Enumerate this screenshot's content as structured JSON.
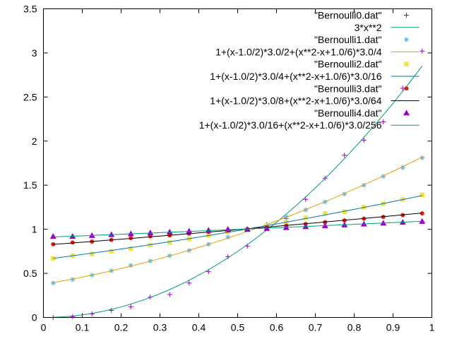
{
  "chart_data": {
    "type": "line",
    "title": "",
    "xlabel": "",
    "ylabel": "",
    "xlim": [
      0,
      1
    ],
    "ylim": [
      0,
      3.5
    ],
    "grid": false,
    "legend_position": "top-right",
    "xticks": [
      "0",
      "0.1",
      "0.2",
      "0.3",
      "0.4",
      "0.5",
      "0.6",
      "0.7",
      "0.8",
      "0.9",
      "1"
    ],
    "yticks": [
      "0",
      "0.5",
      "1",
      "1.5",
      "2",
      "2.5",
      "3",
      "3.5"
    ],
    "series": [
      {
        "name": "\"Bernoulli0.dat\"",
        "kind": "points",
        "marker": "plus",
        "color": "#9400d3",
        "x": [
          0.025,
          0.075,
          0.125,
          0.175,
          0.225,
          0.275,
          0.325,
          0.375,
          0.425,
          0.475,
          0.525,
          0.575,
          0.625,
          0.675,
          0.725,
          0.775,
          0.825,
          0.875,
          0.925,
          0.975
        ],
        "y": [
          0.0,
          0.01,
          0.04,
          0.08,
          0.12,
          0.23,
          0.26,
          0.39,
          0.52,
          0.69,
          0.81,
          1.05,
          1.12,
          1.34,
          1.58,
          1.84,
          2.01,
          2.22,
          2.6,
          3.02
        ]
      },
      {
        "name": "3*x**2",
        "kind": "line",
        "color": "#009e73",
        "formula": "3*x**2"
      },
      {
        "name": "\"Bernoulli1.dat\"",
        "kind": "points",
        "marker": "star",
        "color": "#56b4e9",
        "x": [
          0.025,
          0.075,
          0.125,
          0.175,
          0.225,
          0.275,
          0.325,
          0.375,
          0.425,
          0.475,
          0.525,
          0.575,
          0.625,
          0.675,
          0.725,
          0.775,
          0.825,
          0.875,
          0.925,
          0.975
        ],
        "y": [
          0.39,
          0.43,
          0.48,
          0.53,
          0.59,
          0.64,
          0.7,
          0.76,
          0.83,
          0.91,
          0.99,
          1.04,
          1.14,
          1.22,
          1.31,
          1.4,
          1.5,
          1.6,
          1.7,
          1.81
        ]
      },
      {
        "name": "1+(x-1.0/2)*3.0/2+(x**2-x+1.0/6)*3.0/4",
        "kind": "line",
        "color": "#e69f00",
        "formula": "1+(x-0.5)*1.5+(x*x-x+1/6)*0.75"
      },
      {
        "name": "\"Bernoulli2.dat\"",
        "kind": "points",
        "marker": "square",
        "color": "#f0e442",
        "x": [
          0.025,
          0.075,
          0.125,
          0.175,
          0.225,
          0.275,
          0.325,
          0.375,
          0.425,
          0.475,
          0.525,
          0.575,
          0.625,
          0.675,
          0.725,
          0.775,
          0.825,
          0.875,
          0.925,
          0.975
        ],
        "y": [
          0.67,
          0.7,
          0.72,
          0.75,
          0.78,
          0.82,
          0.85,
          0.89,
          0.93,
          0.97,
          1.0,
          1.03,
          1.08,
          1.13,
          1.18,
          1.2,
          1.25,
          1.29,
          1.34,
          1.39
        ]
      },
      {
        "name": "1+(x-1.0/2)*3.0/4+(x**2-x+1.0/6)*3.0/16",
        "kind": "line",
        "color": "#0072b2",
        "formula": "1+(x-0.5)*0.75+(x*x-x+1/6)*0.1875"
      },
      {
        "name": "\"Bernoulli3.dat\"",
        "kind": "points",
        "marker": "circle",
        "color": "#e51e10",
        "x": [
          0.025,
          0.075,
          0.125,
          0.175,
          0.225,
          0.275,
          0.325,
          0.375,
          0.425,
          0.475,
          0.525,
          0.575,
          0.625,
          0.675,
          0.725,
          0.775,
          0.825,
          0.875,
          0.925,
          0.975
        ],
        "y": [
          0.83,
          0.85,
          0.86,
          0.88,
          0.9,
          0.92,
          0.93,
          0.95,
          0.97,
          0.99,
          1.0,
          1.02,
          1.04,
          1.06,
          1.08,
          1.1,
          1.12,
          1.14,
          1.16,
          1.18
        ]
      },
      {
        "name": "1+(x-1.0/2)*3.0/8+(x**2-x+1.0/6)*3.0/64",
        "kind": "line",
        "color": "#000000",
        "formula": "1+(x-0.5)*0.375+(x*x-x+1/6)*0.046875"
      },
      {
        "name": "\"Bernoulli4.dat\"",
        "kind": "points",
        "marker": "triangle",
        "color": "#9400d3",
        "x": [
          0.025,
          0.075,
          0.125,
          0.175,
          0.225,
          0.275,
          0.325,
          0.375,
          0.425,
          0.475,
          0.525,
          0.575,
          0.625,
          0.675,
          0.725,
          0.775,
          0.825,
          0.875,
          0.925,
          0.975
        ],
        "y": [
          0.92,
          0.92,
          0.93,
          0.94,
          0.95,
          0.96,
          0.97,
          0.98,
          0.99,
          1.0,
          1.0,
          1.01,
          1.02,
          1.03,
          1.04,
          1.05,
          1.06,
          1.07,
          1.08,
          1.09
        ]
      },
      {
        "name": "1+(x-1.0/2)*3.0/16+(x**2-x+1.0/6)*3.0/256",
        "kind": "line",
        "color": "#009e73",
        "formula": "1+(x-0.5)*0.1875+(x*x-x+1/6)*0.01171875"
      }
    ]
  }
}
